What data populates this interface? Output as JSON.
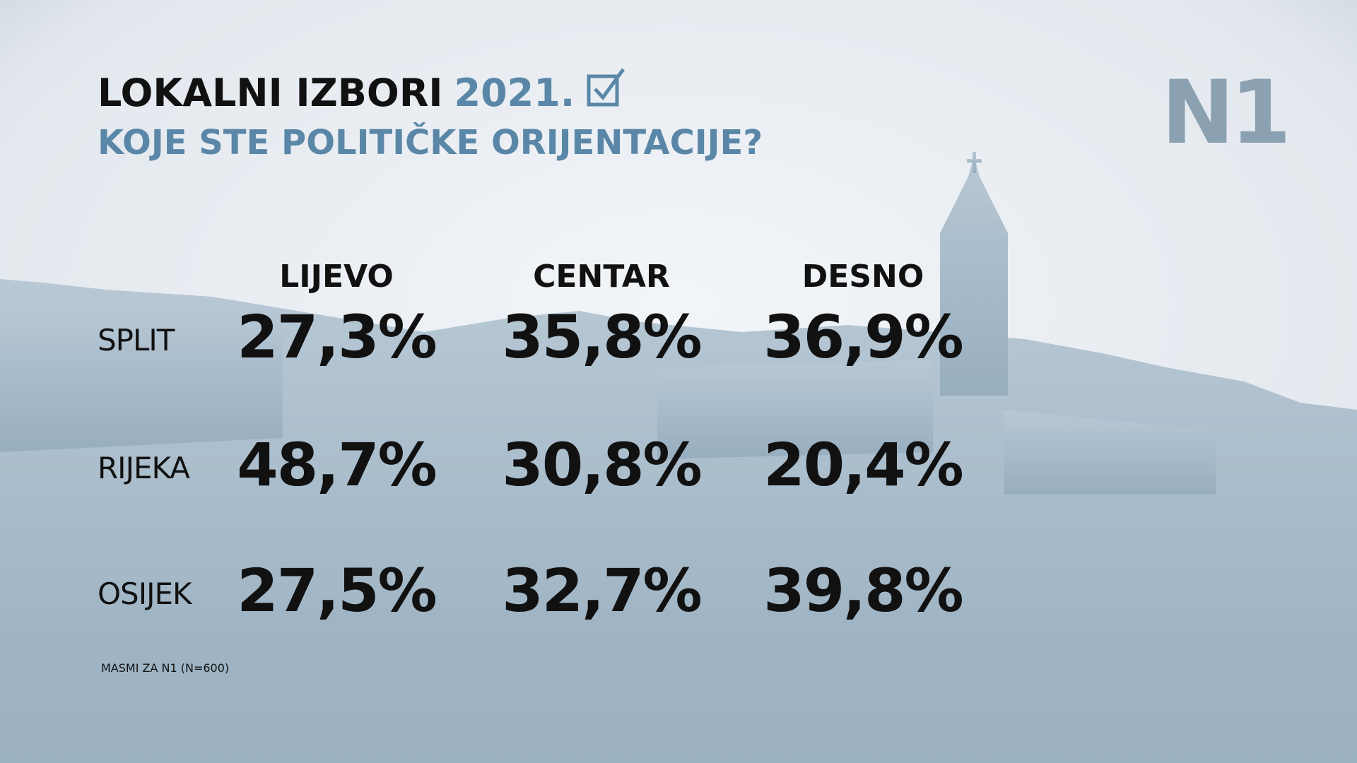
{
  "header": {
    "title": "LOKALNI IZBORI",
    "year": "2021.",
    "subtitle": "KOJE STE POLITIČKE ORIJENTACIJE?",
    "logo": "N1"
  },
  "table": {
    "columns": [
      "LIJEVO",
      "CENTAR",
      "DESNO"
    ],
    "rows": [
      {
        "label": "SPLIT",
        "cells": [
          "27,3%",
          "35,8%",
          "36,9%"
        ]
      },
      {
        "label": "RIJEKA",
        "cells": [
          "48,7%",
          "30,8%",
          "20,4%"
        ]
      },
      {
        "label": "OSIJEK",
        "cells": [
          "27,5%",
          "32,7%",
          "39,8%"
        ]
      }
    ]
  },
  "footer": {
    "source": "MASMI ZA N1 (N=600)"
  }
}
